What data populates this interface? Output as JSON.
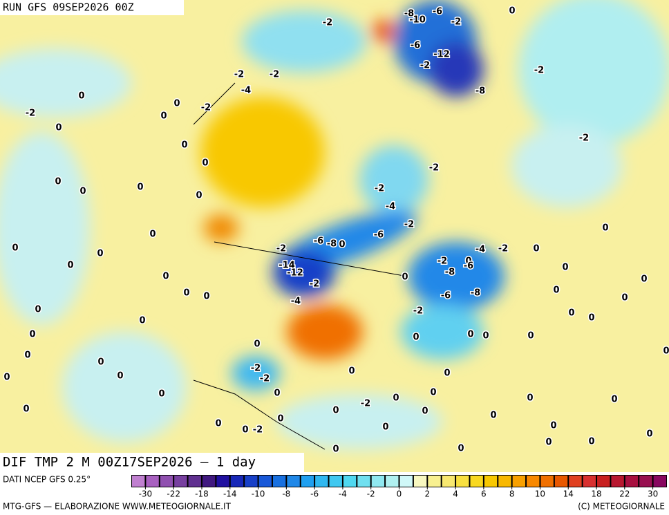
{
  "header": {
    "run": "RUN GFS 09SEP2026 00Z"
  },
  "map": {
    "title": "DIF TMP 2 M 00Z17SEP2026 — 1 day",
    "contour_labels": [
      "-2",
      "-8",
      "-10",
      "-6",
      "-2",
      "0",
      "-6",
      "-12",
      "-2",
      "-2",
      "-8",
      "-2",
      "-2",
      "-4",
      "0",
      "0",
      "-2",
      "-2",
      "0",
      "0",
      "0",
      "-2",
      "0",
      "-2",
      "-2",
      "0",
      "0",
      "0",
      "-2",
      "-4",
      "-2",
      "0",
      "0",
      "0",
      "0",
      "0",
      "-2",
      "-6",
      "-8",
      "0",
      "-6",
      "-4",
      "-2",
      "0",
      "0",
      "0",
      "-14",
      "-12",
      "-2",
      "0",
      "-2",
      "0",
      "-6",
      "-8",
      "0",
      "0",
      "0",
      "0",
      "-4",
      "-6",
      "-8",
      "-2",
      "0",
      "0",
      "0",
      "0",
      "0",
      "0",
      "0",
      "0",
      "0",
      "0",
      "0",
      "0",
      "0",
      "0",
      "0",
      "-2",
      "-2",
      "0",
      "0",
      "0",
      "0",
      "0",
      "0",
      "0",
      "-2",
      "0",
      "0",
      "0",
      "0",
      "0",
      "0",
      "0",
      "0",
      "0",
      "0",
      "0",
      "0",
      "0",
      "0",
      "0",
      "0",
      "0"
    ]
  },
  "footer": {
    "source": "DATI NCEP GFS 0.25°",
    "credit": "MTG-GFS — ELABORAZIONE WWW.METEOGIORNALE.IT",
    "copyright": "(C) METEOGIORNALE"
  },
  "colorbar": {
    "colors": [
      "#c080d0",
      "#a860c0",
      "#9050b0",
      "#7840a0",
      "#603090",
      "#401880",
      "#2010a0",
      "#1828b8",
      "#1840c8",
      "#1858d8",
      "#1870e0",
      "#2088e8",
      "#20a0f0",
      "#30b8f0",
      "#40c8f0",
      "#50d8f0",
      "#70e0f0",
      "#90e8f0",
      "#b0f0f0",
      "#d0f8f8",
      "#f8f8c0",
      "#f8f090",
      "#f8e870",
      "#f8e040",
      "#f8d820",
      "#f8c800",
      "#f8b800",
      "#f8a000",
      "#f88800",
      "#f07000",
      "#e85800",
      "#e04020",
      "#d83030",
      "#c82020",
      "#b81830",
      "#a81040",
      "#981050",
      "#880860"
    ],
    "ticks": [
      -30,
      -22,
      -18,
      -14,
      -10,
      -8,
      -6,
      -4,
      -2,
      0,
      2,
      4,
      6,
      8,
      10,
      14,
      18,
      22,
      30
    ]
  }
}
